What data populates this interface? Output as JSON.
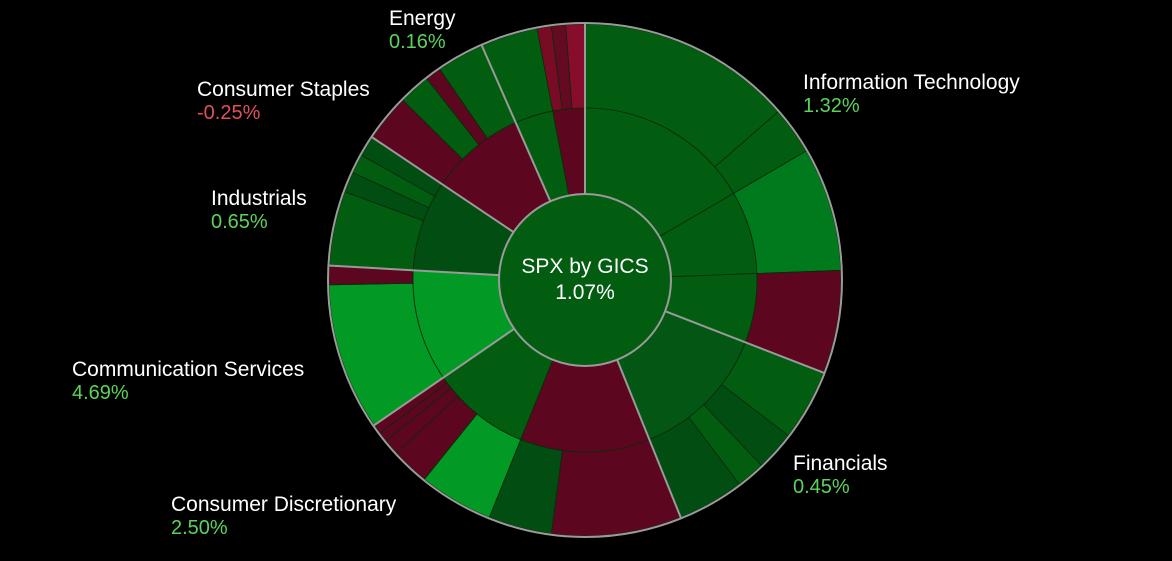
{
  "chart_data": {
    "type": "sunburst",
    "title": "SPX by GICS",
    "total_change": "1.07%",
    "colors": {
      "positive_label": "#5bd35b",
      "negative_label": "#e0505a",
      "ring_stroke": "#9a9a9a",
      "background": "#000000"
    },
    "sectors": [
      {
        "name": "Information Technology",
        "change": "1.32%",
        "value": 1.32,
        "sweep": 0.309,
        "color": "#035d11",
        "children": [
          {
            "sweep": 0.166,
            "color": "#035d11",
            "children": [
              {
                "sweep": 0.136,
                "color": "#035d11"
              },
              {
                "sweep": 0.03,
                "color": "#035d11"
              }
            ]
          },
          {
            "sweep": 0.078,
            "color": "#035d11",
            "children": [
              {
                "sweep": 0.078,
                "color": "#017a1d"
              }
            ]
          },
          {
            "sweep": 0.065,
            "color": "#035d11",
            "children": [
              {
                "sweep": 0.065,
                "color": "#5c0620"
              }
            ]
          }
        ]
      },
      {
        "name": "Financials",
        "change": "0.45%",
        "value": 0.45,
        "sweep": 0.13,
        "color": "#045615",
        "children": [
          {
            "sweep": 0.13,
            "color": "#045615",
            "children": [
              {
                "sweep": 0.045,
                "color": "#035d11"
              },
              {
                "sweep": 0.025,
                "color": "#024e12"
              },
              {
                "sweep": 0.018,
                "color": "#035d11"
              },
              {
                "sweep": 0.042,
                "color": "#024e12"
              }
            ]
          }
        ]
      },
      {
        "name": "Consumer Discretionary",
        "change": "2.50%",
        "value": 2.5,
        "sweep": 0.215,
        "color": "#035d11",
        "children": [
          {
            "sweep": 0.122,
            "color": "#5c0620",
            "children": [
              {
                "sweep": 0.082,
                "color": "#5c0620"
              },
              {
                "sweep": 0.04,
                "color": "#024e12"
              }
            ]
          },
          {
            "sweep": 0.093,
            "color": "#035d11",
            "children": [
              {
                "sweep": 0.047,
                "color": "#029a24"
              },
              {
                "sweep": 0.024,
                "color": "#5c0620"
              },
              {
                "sweep": 0.01,
                "color": "#5c0620"
              },
              {
                "sweep": 0.006,
                "color": "#5c0620"
              },
              {
                "sweep": 0.006,
                "color": "#5c0620"
              }
            ]
          }
        ]
      },
      {
        "name": "Communication Services",
        "change": "4.69%",
        "value": 4.69,
        "sweep": 0.105,
        "color": "#029a24",
        "children": [
          {
            "sweep": 0.105,
            "color": "#029a24",
            "children": [
              {
                "sweep": 0.093,
                "color": "#029a24"
              },
              {
                "sweep": 0.012,
                "color": "#5c0620"
              }
            ]
          }
        ]
      },
      {
        "name": "Industrials",
        "change": "0.65%",
        "value": 0.65,
        "sweep": 0.085,
        "color": "#024e12",
        "children": [
          {
            "sweep": 0.085,
            "color": "#024e12",
            "children": [
              {
                "sweep": 0.047,
                "color": "#035d11"
              },
              {
                "sweep": 0.013,
                "color": "#024e12"
              },
              {
                "sweep": 0.012,
                "color": "#035d11"
              },
              {
                "sweep": 0.013,
                "color": "#024e12"
              }
            ]
          }
        ]
      },
      {
        "name": "Consumer Staples",
        "change": "-0.25%",
        "value": -0.25,
        "sweep": 0.09,
        "color": "#5c0620",
        "children": [
          {
            "sweep": 0.09,
            "color": "#5c0620",
            "children": [
              {
                "sweep": 0.03,
                "color": "#5c0620"
              },
              {
                "sweep": 0.02,
                "color": "#035d11"
              },
              {
                "sweep": 0.01,
                "color": "#5c0620"
              },
              {
                "sweep": 0.03,
                "color": "#035d11"
              }
            ]
          }
        ]
      },
      {
        "name": "Energy",
        "change": "0.16%",
        "value": 0.16,
        "sweep": 0.066,
        "color": "#035d11",
        "children": [
          {
            "sweep": 0.036,
            "color": "#035d11",
            "children": [
              {
                "sweep": 0.036,
                "color": "#035d11"
              }
            ]
          },
          {
            "sweep": 0.03,
            "color": "#5c0620",
            "children": [
              {
                "sweep": 0.009,
                "color": "#7a0b25"
              },
              {
                "sweep": 0.009,
                "color": "#640a22"
              },
              {
                "sweep": 0.012,
                "color": "#870d2c"
              }
            ]
          }
        ]
      }
    ]
  }
}
